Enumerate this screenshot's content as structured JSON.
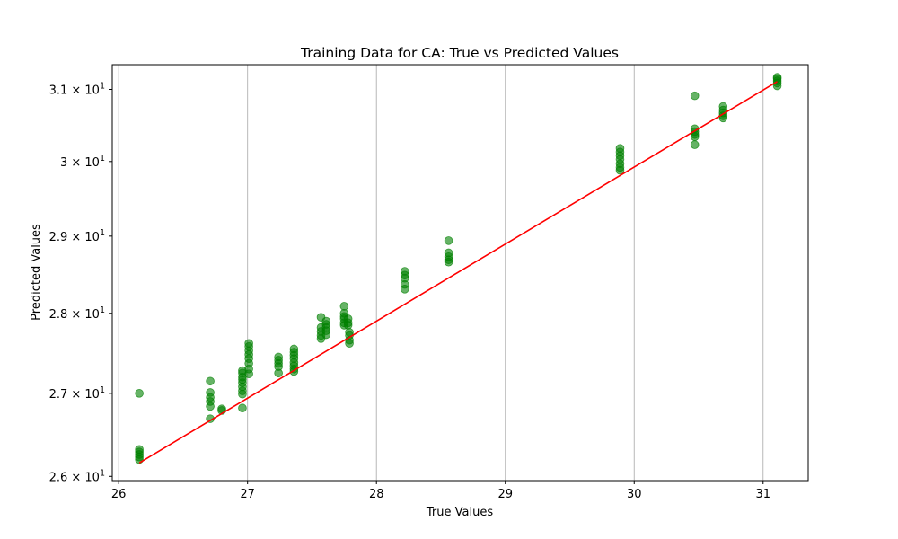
{
  "chart_data": {
    "type": "scatter",
    "title": "Training Data for CA: True vs Predicted Values",
    "xlabel": "True Values",
    "ylabel": "Predicted Values",
    "xlim": [
      25.95,
      31.35
    ],
    "ylim": [
      25.95,
      31.35
    ],
    "y_scale": "log",
    "grid": "x-axis only",
    "x_ticks": [
      26,
      27,
      28,
      29,
      30,
      31
    ],
    "x_tick_labels": [
      "26",
      "27",
      "28",
      "29",
      "30",
      "31"
    ],
    "y_ticks": [
      26,
      27,
      28,
      29,
      30,
      31
    ],
    "y_tick_labels": [
      {
        "base": "2.6 × 10",
        "exp": "1"
      },
      {
        "base": "2.7 × 10",
        "exp": "1"
      },
      {
        "base": "2.8 × 10",
        "exp": "1"
      },
      {
        "base": "2.9 × 10",
        "exp": "1"
      },
      {
        "base": "3 × 10",
        "exp": "1"
      },
      {
        "base": "3.1 × 10",
        "exp": "1"
      }
    ],
    "point_color": "#008000",
    "line_color": "#ff0000",
    "reference_line": {
      "x": [
        26.16,
        31.11
      ],
      "y": [
        26.16,
        31.11
      ]
    },
    "points": [
      [
        26.16,
        27.0
      ],
      [
        26.16,
        26.32
      ],
      [
        26.16,
        26.29
      ],
      [
        26.16,
        26.26
      ],
      [
        26.16,
        26.23
      ],
      [
        26.16,
        26.2
      ],
      [
        26.71,
        27.15
      ],
      [
        26.71,
        27.01
      ],
      [
        26.71,
        26.95
      ],
      [
        26.71,
        26.9
      ],
      [
        26.71,
        26.84
      ],
      [
        26.71,
        26.69
      ],
      [
        26.8,
        26.81
      ],
      [
        26.8,
        26.79
      ],
      [
        26.96,
        27.28
      ],
      [
        26.96,
        27.25
      ],
      [
        26.96,
        27.2
      ],
      [
        26.96,
        27.17
      ],
      [
        26.96,
        27.13
      ],
      [
        26.96,
        27.08
      ],
      [
        26.96,
        27.03
      ],
      [
        26.96,
        26.99
      ],
      [
        26.96,
        26.82
      ],
      [
        27.01,
        27.62
      ],
      [
        27.01,
        27.58
      ],
      [
        27.01,
        27.53
      ],
      [
        27.01,
        27.48
      ],
      [
        27.01,
        27.43
      ],
      [
        27.01,
        27.37
      ],
      [
        27.01,
        27.3
      ],
      [
        27.01,
        27.24
      ],
      [
        27.24,
        27.45
      ],
      [
        27.24,
        27.41
      ],
      [
        27.24,
        27.37
      ],
      [
        27.24,
        27.33
      ],
      [
        27.24,
        27.25
      ],
      [
        27.36,
        27.55
      ],
      [
        27.36,
        27.51
      ],
      [
        27.36,
        27.47
      ],
      [
        27.36,
        27.43
      ],
      [
        27.36,
        27.38
      ],
      [
        27.36,
        27.34
      ],
      [
        27.36,
        27.3
      ],
      [
        27.36,
        27.27
      ],
      [
        27.57,
        27.95
      ],
      [
        27.57,
        27.82
      ],
      [
        27.57,
        27.77
      ],
      [
        27.57,
        27.72
      ],
      [
        27.57,
        27.68
      ],
      [
        27.61,
        27.9
      ],
      [
        27.61,
        27.86
      ],
      [
        27.61,
        27.82
      ],
      [
        27.61,
        27.78
      ],
      [
        27.61,
        27.73
      ],
      [
        27.75,
        28.09
      ],
      [
        27.75,
        28.0
      ],
      [
        27.75,
        27.96
      ],
      [
        27.75,
        27.93
      ],
      [
        27.75,
        27.88
      ],
      [
        27.75,
        27.85
      ],
      [
        27.78,
        27.93
      ],
      [
        27.78,
        27.88
      ],
      [
        27.78,
        27.85
      ],
      [
        27.79,
        27.76
      ],
      [
        27.79,
        27.72
      ],
      [
        27.79,
        27.66
      ],
      [
        27.79,
        27.62
      ],
      [
        28.22,
        28.54
      ],
      [
        28.22,
        28.49
      ],
      [
        28.22,
        28.45
      ],
      [
        28.22,
        28.37
      ],
      [
        28.22,
        28.31
      ],
      [
        28.56,
        28.94
      ],
      [
        28.56,
        28.78
      ],
      [
        28.56,
        28.73
      ],
      [
        28.56,
        28.69
      ],
      [
        28.56,
        28.66
      ],
      [
        29.89,
        30.18
      ],
      [
        29.89,
        30.13
      ],
      [
        29.89,
        30.08
      ],
      [
        29.89,
        30.03
      ],
      [
        29.89,
        29.97
      ],
      [
        29.89,
        29.92
      ],
      [
        29.89,
        29.88
      ],
      [
        30.47,
        30.91
      ],
      [
        30.47,
        30.45
      ],
      [
        30.47,
        30.41
      ],
      [
        30.47,
        30.37
      ],
      [
        30.47,
        30.34
      ],
      [
        30.47,
        30.23
      ],
      [
        30.69,
        30.76
      ],
      [
        30.69,
        30.71
      ],
      [
        30.69,
        30.67
      ],
      [
        30.69,
        30.63
      ],
      [
        30.69,
        30.6
      ],
      [
        31.11,
        31.17
      ],
      [
        31.11,
        31.15
      ],
      [
        31.11,
        31.12
      ],
      [
        31.11,
        31.09
      ],
      [
        31.11,
        31.05
      ]
    ]
  }
}
